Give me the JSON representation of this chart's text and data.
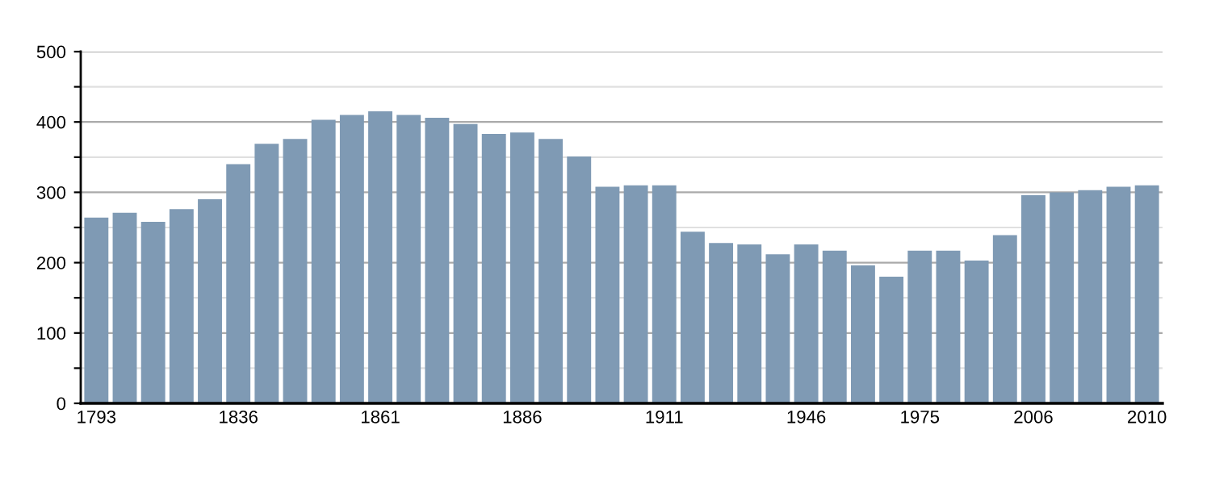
{
  "chart_data": {
    "type": "bar",
    "categories": [
      "1793",
      null,
      null,
      null,
      null,
      "1836",
      null,
      null,
      null,
      null,
      "1861",
      null,
      null,
      null,
      null,
      "1886",
      null,
      null,
      null,
      null,
      "1911",
      null,
      null,
      null,
      null,
      "1946",
      null,
      null,
      null,
      "1975",
      null,
      null,
      null,
      "2006",
      null,
      null,
      null,
      "2010"
    ],
    "values": [
      264,
      271,
      258,
      276,
      290,
      340,
      369,
      376,
      403,
      410,
      415,
      410,
      406,
      397,
      383,
      385,
      376,
      351,
      308,
      310,
      310,
      244,
      228,
      226,
      212,
      226,
      217,
      196,
      180,
      217,
      217,
      203,
      239,
      296,
      300,
      303,
      308,
      310
    ],
    "color": "#7f9ab4",
    "ylim": [
      0,
      500
    ],
    "yticks": [
      0,
      {
        "value": 50,
        "label": null
      },
      100,
      {
        "value": 150,
        "label": null
      },
      200,
      {
        "value": 250,
        "label": null
      },
      300,
      {
        "value": 350,
        "label": null
      },
      400,
      {
        "value": 450,
        "label": null
      },
      500
    ],
    "grid": "y"
  }
}
